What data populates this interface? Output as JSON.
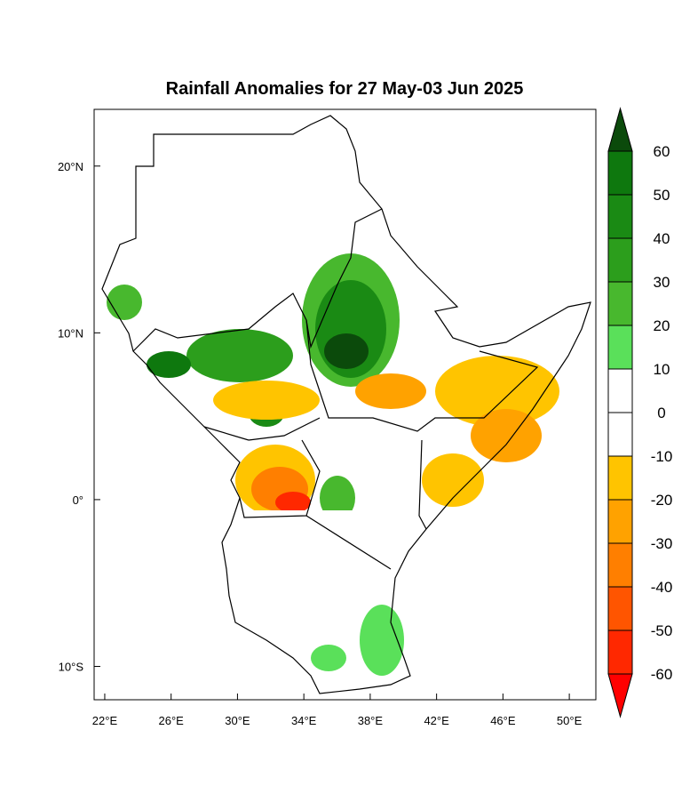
{
  "title": "Rainfall Anomalies for 27 May-03 Jun 2025",
  "lonlim": [
    21.36,
    51.6
  ],
  "latlim": [
    23.4,
    -12
  ],
  "lon_ticks": [
    {
      "value": 22,
      "label": "22°E"
    },
    {
      "value": 26,
      "label": "26°E"
    },
    {
      "value": 30,
      "label": "30°E"
    },
    {
      "value": 34,
      "label": "34°E"
    },
    {
      "value": 38,
      "label": "38°E"
    },
    {
      "value": 42,
      "label": "42°E"
    },
    {
      "value": 46,
      "label": "46°E"
    },
    {
      "value": 50,
      "label": "50°E"
    }
  ],
  "lat_ticks": [
    {
      "value": 20,
      "label": "20°N"
    },
    {
      "value": 10,
      "label": "10°N"
    },
    {
      "value": 0,
      "label": "0°"
    },
    {
      "value": -10,
      "label": "10°S"
    }
  ],
  "colorbar": {
    "levels": [
      60,
      50,
      40,
      30,
      20,
      10,
      0,
      -10,
      -20,
      -30,
      -40,
      -50,
      -60
    ],
    "colors": [
      "#0b4a0b",
      "#0e780e",
      "#1a8a14",
      "#2c9e1c",
      "#48b82e",
      "#5ae05a",
      "#ffffff",
      "#ffffff",
      "#ffc400",
      "#ffa200",
      "#ff7f00",
      "#ff5500",
      "#ff2800",
      "#ff0000"
    ]
  }
}
